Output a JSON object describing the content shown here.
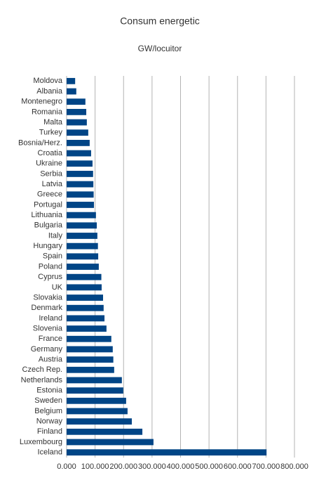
{
  "chart_data": {
    "type": "hbar",
    "title": "Consum energetic",
    "subtitle": "GW/locuitor",
    "categories": [
      "Moldova",
      "Albania",
      "Montenegro",
      "Romania",
      "Malta",
      "Turkey",
      "Bosnia/Herz.",
      "Croatia",
      "Ukraine",
      "Serbia",
      "Latvia",
      "Greece",
      "Portugal",
      "Lithuania",
      "Bulgaria",
      "Italy",
      "Hungary",
      "Spain",
      "Poland",
      "Cyprus",
      "UK",
      "Slovakia",
      "Denmark",
      "Ireland",
      "Slovenia",
      "France",
      "Germany",
      "Austria",
      "Czech Rep.",
      "Netherlands",
      "Estonia",
      "Sweden",
      "Belgium",
      "Norway",
      "Finland",
      "Luxembourg",
      "Iceland"
    ],
    "values": [
      30,
      34,
      66,
      69,
      71,
      76,
      81,
      86,
      91,
      93,
      94,
      95,
      96,
      103,
      106,
      108,
      110,
      111,
      113,
      122,
      123,
      128,
      130,
      133,
      140,
      157,
      162,
      164,
      167,
      194,
      199,
      209,
      214,
      229,
      266,
      305,
      702
    ],
    "color": "#004586",
    "xlim": [
      0,
      800
    ],
    "xticks": [
      {
        "value": 0,
        "label": "0.000"
      },
      {
        "value": 100,
        "label": "100.000"
      },
      {
        "value": 200,
        "label": "200.000"
      },
      {
        "value": 300,
        "label": "300.000"
      },
      {
        "value": 400,
        "label": "400.000"
      },
      {
        "value": 500,
        "label": "500.000"
      },
      {
        "value": 600,
        "label": "600.000"
      },
      {
        "value": 700,
        "label": "700.000"
      },
      {
        "value": 800,
        "label": "800.000"
      }
    ],
    "grid": true
  }
}
